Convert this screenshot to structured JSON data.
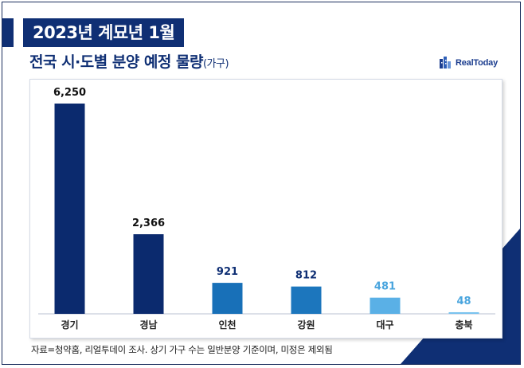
{
  "header": {
    "title": "2023년 계묘년 1월",
    "subtitle": "전국 시·도별 분양 예정 물량",
    "unit": "(가구)"
  },
  "brand": {
    "logo_text": "RealToday"
  },
  "footer": {
    "source": "자료=청약홈, 리얼투데이 조사. 상기 가구 수는 일반분양 기준이며, 미정은 제외됨"
  },
  "colors": {
    "primary": "#0f2f74",
    "bars": [
      "#0b2a6e",
      "#0b2a6e",
      "#1870b8",
      "#1c76bd",
      "#5ab0e6",
      "#79c3ee"
    ],
    "value_labels": [
      "#111111",
      "#111111",
      "#0f2f74",
      "#0f2f74",
      "#4aa5de",
      "#4aa5de"
    ]
  },
  "chart_data": {
    "type": "bar",
    "categories": [
      "경기",
      "경남",
      "인천",
      "강원",
      "대구",
      "충북"
    ],
    "values": [
      6250,
      2366,
      921,
      812,
      481,
      48
    ],
    "value_labels": [
      "6,250",
      "2,366",
      "921",
      "812",
      "481",
      "48"
    ],
    "ylim": [
      0,
      6250
    ],
    "grid": false,
    "legend": "none"
  }
}
